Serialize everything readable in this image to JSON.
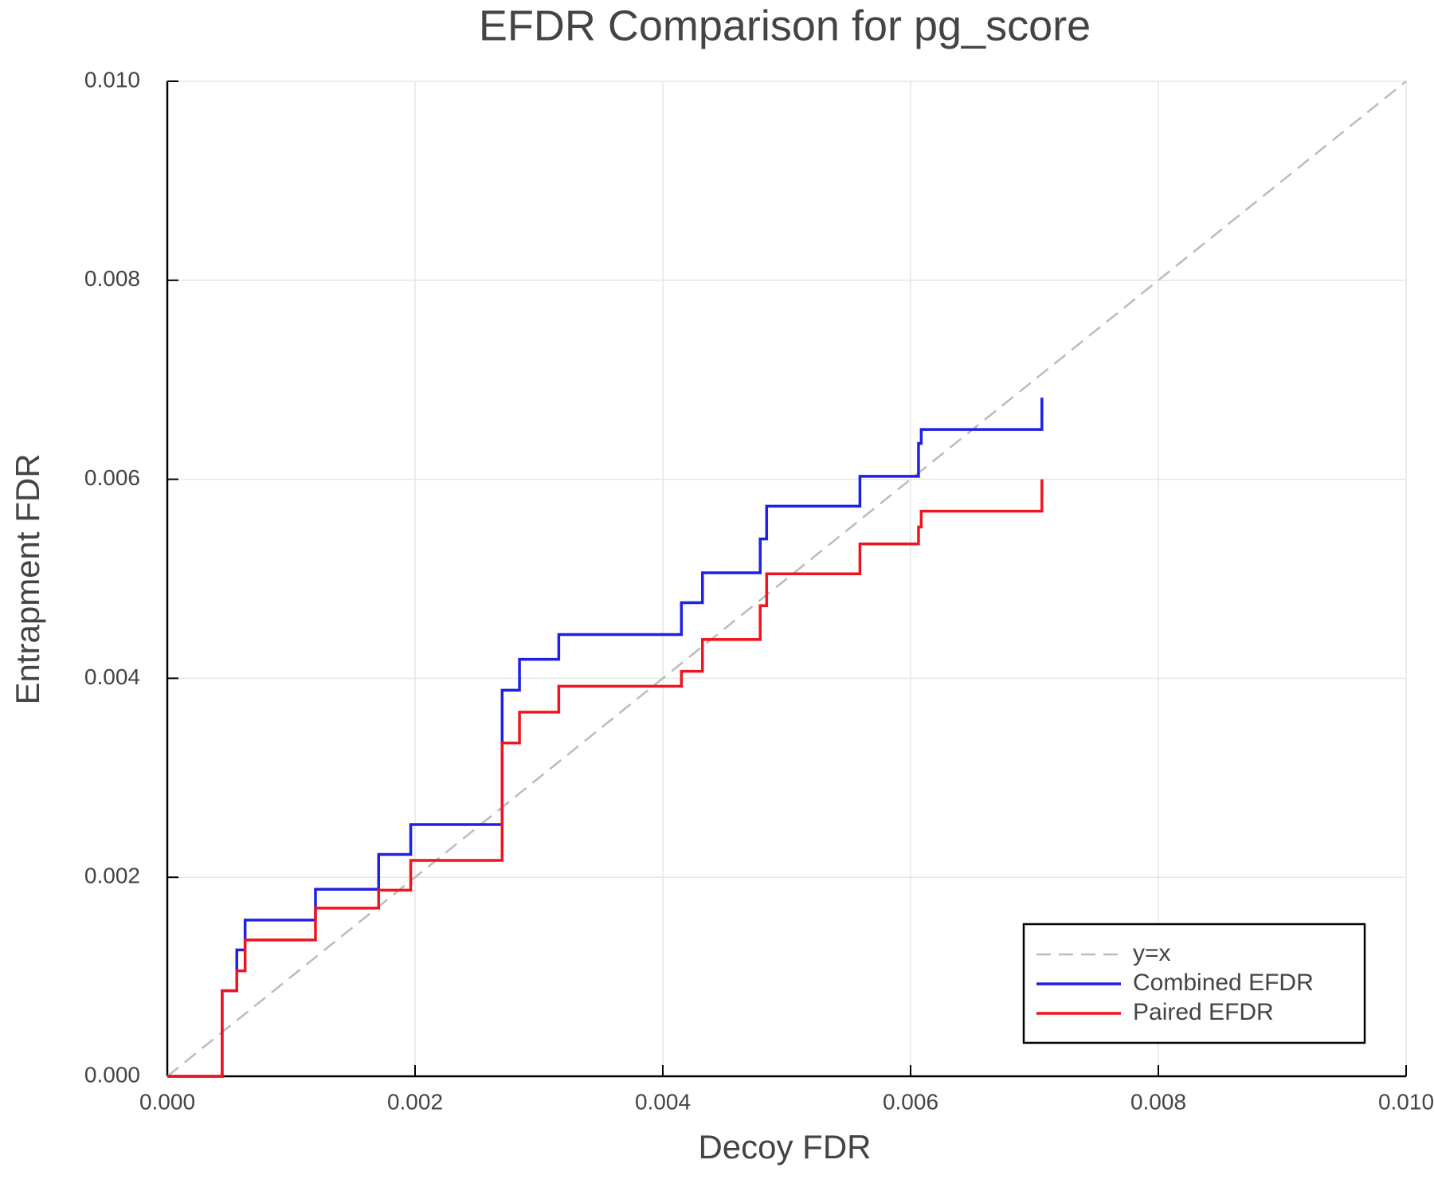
{
  "chart_data": {
    "type": "line",
    "title": "EFDR Comparison for pg_score",
    "x_label": "Decoy FDR",
    "y_label": "Entrapment FDR",
    "xlim": [
      0,
      0.01
    ],
    "ylim": [
      0,
      0.01
    ],
    "xticks": [
      {
        "value": 0,
        "label": "0.000"
      },
      {
        "value": 0.002,
        "label": "0.002"
      },
      {
        "value": 0.004,
        "label": "0.004"
      },
      {
        "value": 0.006,
        "label": "0.006"
      },
      {
        "value": 0.008,
        "label": "0.008"
      },
      {
        "value": 0.01,
        "label": "0.010"
      }
    ],
    "yticks": [
      {
        "value": 0,
        "label": "0.000"
      },
      {
        "value": 0.002,
        "label": "0.002"
      },
      {
        "value": 0.004,
        "label": "0.004"
      },
      {
        "value": 0.006,
        "label": "0.006"
      },
      {
        "value": 0.008,
        "label": "0.008"
      },
      {
        "value": 0.01,
        "label": "0.010"
      }
    ],
    "grid": true,
    "legend": "lower right",
    "series": [
      {
        "name": "y=x",
        "color": "#bbbbbb",
        "dashed": true,
        "x": [
          0,
          0.01
        ],
        "values": [
          0,
          0.01
        ]
      },
      {
        "name": "Combined EFDR",
        "color": "#1f1fe6",
        "x": [
          0,
          0.000443,
          0.000443,
          0.000561,
          0.000561,
          0.000628,
          0.000628,
          0.001196,
          0.001196,
          0.001706,
          0.001706,
          0.001965,
          0.001965,
          0.002703,
          0.002703,
          0.002843,
          0.002843,
          0.00316,
          0.00316,
          0.00415,
          0.00415,
          0.00432,
          0.00432,
          0.004786,
          0.004786,
          0.004838,
          0.004838,
          0.005591,
          0.005591,
          0.006064,
          0.006064,
          0.006086,
          0.006086,
          0.00706,
          0.00706
        ],
        "values": [
          0,
          0,
          0.00086,
          0.00086,
          0.00127,
          0.00127,
          0.00157,
          0.00157,
          0.00188,
          0.00188,
          0.00223,
          0.00223,
          0.00253,
          0.00253,
          0.00388,
          0.00388,
          0.00419,
          0.00419,
          0.00444,
          0.00444,
          0.00476,
          0.00476,
          0.00506,
          0.00506,
          0.0054,
          0.0054,
          0.00573,
          0.00573,
          0.00603,
          0.00603,
          0.00636,
          0.00636,
          0.0065,
          0.0065,
          0.00682
        ]
      },
      {
        "name": "Paired EFDR",
        "color": "#f0141e",
        "x": [
          0,
          0.000443,
          0.000443,
          0.000561,
          0.000561,
          0.000628,
          0.000628,
          0.001196,
          0.001196,
          0.001706,
          0.001706,
          0.001965,
          0.001965,
          0.002703,
          0.002703,
          0.002843,
          0.002843,
          0.00316,
          0.00316,
          0.00415,
          0.00415,
          0.00432,
          0.00432,
          0.004786,
          0.004786,
          0.004838,
          0.004838,
          0.005591,
          0.005591,
          0.006064,
          0.006064,
          0.006086,
          0.006086,
          0.00706,
          0.00706
        ],
        "values": [
          0,
          0,
          0.00086,
          0.00086,
          0.00106,
          0.00106,
          0.00137,
          0.00137,
          0.00169,
          0.00169,
          0.00187,
          0.00187,
          0.00217,
          0.00217,
          0.00335,
          0.00335,
          0.00366,
          0.00366,
          0.00392,
          0.00392,
          0.00407,
          0.00407,
          0.00439,
          0.00439,
          0.00473,
          0.00473,
          0.00505,
          0.00505,
          0.00535,
          0.00535,
          0.00552,
          0.00552,
          0.00568,
          0.00568,
          0.006
        ]
      }
    ]
  }
}
